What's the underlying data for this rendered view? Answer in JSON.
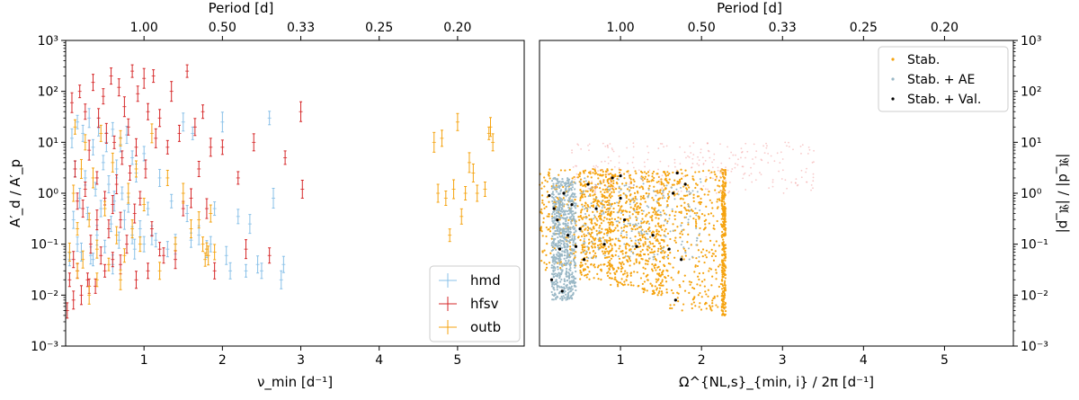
{
  "chart_data": [
    {
      "type": "scatter",
      "panel": "left",
      "xlabel": "ν_min [d⁻¹]",
      "ylabel": "A′_d / A′_p",
      "top_xlabel": "Period [d]",
      "xlim": [
        0.0,
        5.85
      ],
      "ylim": [
        0.001,
        1000
      ],
      "yscale": "log",
      "x_ticks": [
        "1",
        "2",
        "3",
        "4",
        "5"
      ],
      "x_tick_values": [
        1,
        2,
        3,
        4,
        5
      ],
      "top_ticks": [
        "1.00",
        "0.50",
        "0.33",
        "0.25",
        "0.20"
      ],
      "top_tick_values": [
        1.0,
        2.0,
        3.0,
        4.0,
        5.0
      ],
      "y_ticks": [
        "10⁻³",
        "10⁻²",
        "10⁻¹",
        "10⁰",
        "10¹",
        "10²",
        "10³"
      ],
      "y_tick_values": [
        0.001,
        0.01,
        0.1,
        1,
        10,
        100,
        1000
      ],
      "legend_position": "bottom-right",
      "series": [
        {
          "name": "hmd",
          "color": "#88c0e8",
          "points": [
            [
              0.05,
              0.05
            ],
            [
              0.08,
              12
            ],
            [
              0.1,
              0.3
            ],
            [
              0.12,
              3
            ],
            [
              0.15,
              25
            ],
            [
              0.18,
              0.8
            ],
            [
              0.2,
              0.07
            ],
            [
              0.22,
              15
            ],
            [
              0.25,
              2
            ],
            [
              0.28,
              0.4
            ],
            [
              0.3,
              30
            ],
            [
              0.32,
              0.06
            ],
            [
              0.35,
              8
            ],
            [
              0.38,
              1.2
            ],
            [
              0.4,
              0.15
            ],
            [
              0.42,
              20
            ],
            [
              0.45,
              0.5
            ],
            [
              0.48,
              4
            ],
            [
              0.5,
              0.09
            ],
            [
              0.52,
              10
            ],
            [
              0.55,
              1.5
            ],
            [
              0.58,
              0.25
            ],
            [
              0.6,
              18
            ],
            [
              0.62,
              0.7
            ],
            [
              0.65,
              3
            ],
            [
              0.68,
              0.12
            ],
            [
              0.7,
              9
            ],
            [
              0.72,
              1
            ],
            [
              0.75,
              0.3
            ],
            [
              0.78,
              14
            ],
            [
              0.8,
              0.6
            ],
            [
              0.85,
              5
            ],
            [
              0.88,
              0.08
            ],
            [
              0.9,
              2.5
            ],
            [
              0.95,
              0.2
            ],
            [
              1.0,
              6
            ],
            [
              1.05,
              0.5
            ],
            [
              1.1,
              0.15
            ],
            [
              1.2,
              2
            ],
            [
              1.3,
              0.08
            ],
            [
              1.35,
              0.7
            ],
            [
              1.4,
              0.1
            ],
            [
              1.5,
              25
            ],
            [
              1.55,
              0.4
            ],
            [
              1.6,
              0.12
            ],
            [
              1.62,
              15
            ],
            [
              1.7,
              0.15
            ],
            [
              1.8,
              0.08
            ],
            [
              1.85,
              0.1
            ],
            [
              1.9,
              0.5
            ],
            [
              2.0,
              25
            ],
            [
              2.05,
              0.06
            ],
            [
              2.1,
              0.03
            ],
            [
              2.2,
              0.35
            ],
            [
              2.3,
              0.03
            ],
            [
              2.35,
              0.25
            ],
            [
              2.45,
              0.04
            ],
            [
              2.5,
              0.03
            ],
            [
              2.6,
              30
            ],
            [
              2.65,
              0.8
            ],
            [
              2.75,
              0.02
            ],
            [
              2.78,
              0.04
            ],
            [
              0.15,
              0.1
            ],
            [
              0.35,
              0.05
            ],
            [
              0.6,
              0.04
            ],
            [
              0.85,
              0.15
            ],
            [
              1.0,
              0.1
            ],
            [
              1.15,
              0.12
            ]
          ]
        },
        {
          "name": "hfsv",
          "color": "#d62728",
          "points": [
            [
              0.02,
              0.005
            ],
            [
              0.05,
              0.02
            ],
            [
              0.08,
              60
            ],
            [
              0.1,
              0.008
            ],
            [
              0.12,
              3
            ],
            [
              0.15,
              0.03
            ],
            [
              0.18,
              100
            ],
            [
              0.2,
              0.01
            ],
            [
              0.22,
              0.5
            ],
            [
              0.25,
              40
            ],
            [
              0.28,
              0.02
            ],
            [
              0.3,
              7
            ],
            [
              0.32,
              0.1
            ],
            [
              0.35,
              150
            ],
            [
              0.38,
              0.015
            ],
            [
              0.4,
              2
            ],
            [
              0.42,
              30
            ],
            [
              0.45,
              0.06
            ],
            [
              0.48,
              80
            ],
            [
              0.5,
              0.8
            ],
            [
              0.52,
              15
            ],
            [
              0.55,
              0.2
            ],
            [
              0.58,
              200
            ],
            [
              0.6,
              0.05
            ],
            [
              0.62,
              10
            ],
            [
              0.65,
              1.5
            ],
            [
              0.68,
              120
            ],
            [
              0.7,
              0.3
            ],
            [
              0.72,
              5
            ],
            [
              0.75,
              50
            ],
            [
              0.78,
              0.1
            ],
            [
              0.8,
              20
            ],
            [
              0.82,
              2.5
            ],
            [
              0.85,
              250
            ],
            [
              0.88,
              0.4
            ],
            [
              0.9,
              8
            ],
            [
              0.92,
              90
            ],
            [
              0.95,
              0.8
            ],
            [
              1.0,
              180
            ],
            [
              1.02,
              3
            ],
            [
              1.05,
              40
            ],
            [
              1.1,
              0.2
            ],
            [
              1.12,
              200
            ],
            [
              1.15,
              12
            ],
            [
              1.2,
              30
            ],
            [
              1.25,
              0.06
            ],
            [
              1.3,
              8
            ],
            [
              1.35,
              100
            ],
            [
              1.4,
              0.05
            ],
            [
              1.45,
              15
            ],
            [
              1.5,
              0.5
            ],
            [
              1.55,
              250
            ],
            [
              1.6,
              0.8
            ],
            [
              1.65,
              20
            ],
            [
              1.7,
              3
            ],
            [
              1.75,
              40
            ],
            [
              1.8,
              0.5
            ],
            [
              1.85,
              8
            ],
            [
              1.9,
              0.03
            ],
            [
              2.0,
              8
            ],
            [
              2.2,
              2
            ],
            [
              2.3,
              0.08
            ],
            [
              2.4,
              10
            ],
            [
              2.6,
              0.06
            ],
            [
              2.8,
              5
            ],
            [
              3.0,
              40
            ],
            [
              3.02,
              1.2
            ],
            [
              0.1,
              0.05
            ],
            [
              0.3,
              0.015
            ],
            [
              0.5,
              0.03
            ],
            [
              0.7,
              0.04
            ],
            [
              0.9,
              0.02
            ],
            [
              1.05,
              0.03
            ],
            [
              1.2,
              0.08
            ],
            [
              0.4,
              0.3
            ],
            [
              0.6,
              0.6
            ],
            [
              0.15,
              0.7
            ],
            [
              0.25,
              1.2
            ]
          ]
        },
        {
          "name": "outb",
          "color": "#f5a30f",
          "points": [
            [
              0.05,
              0.07
            ],
            [
              0.1,
              1
            ],
            [
              0.12,
              20
            ],
            [
              0.15,
              0.2
            ],
            [
              0.2,
              3
            ],
            [
              0.22,
              0.05
            ],
            [
              0.25,
              10
            ],
            [
              0.3,
              0.3
            ],
            [
              0.35,
              2
            ],
            [
              0.4,
              0.08
            ],
            [
              0.45,
              15
            ],
            [
              0.5,
              0.5
            ],
            [
              0.55,
              0.04
            ],
            [
              0.6,
              4
            ],
            [
              0.65,
              0.15
            ],
            [
              0.7,
              12
            ],
            [
              0.75,
              0.06
            ],
            [
              0.8,
              1
            ],
            [
              0.85,
              0.2
            ],
            [
              0.9,
              3
            ],
            [
              0.95,
              0.1
            ],
            [
              1.0,
              0.6
            ],
            [
              1.1,
              15
            ],
            [
              1.2,
              0.03
            ],
            [
              1.3,
              2
            ],
            [
              1.4,
              0.1
            ],
            [
              1.5,
              1
            ],
            [
              1.6,
              0.2
            ],
            [
              1.7,
              0.3
            ],
            [
              1.75,
              0.1
            ],
            [
              1.8,
              0.08
            ],
            [
              1.82,
              0.06
            ],
            [
              1.85,
              0.4
            ],
            [
              1.9,
              0.07
            ],
            [
              1.78,
              0.05
            ],
            [
              4.7,
              10
            ],
            [
              4.75,
              1
            ],
            [
              4.8,
              12
            ],
            [
              4.85,
              0.8
            ],
            [
              4.9,
              0.15
            ],
            [
              4.95,
              1.2
            ],
            [
              5.0,
              25
            ],
            [
              5.05,
              0.35
            ],
            [
              5.1,
              1
            ],
            [
              5.15,
              4
            ],
            [
              5.2,
              2.5
            ],
            [
              5.25,
              1
            ],
            [
              5.35,
              1.2
            ],
            [
              5.4,
              15
            ],
            [
              5.42,
              20
            ],
            [
              5.45,
              10
            ],
            [
              0.15,
              0.03
            ],
            [
              0.4,
              0.02
            ],
            [
              0.7,
              0.02
            ],
            [
              0.3,
              0.01
            ]
          ]
        }
      ]
    },
    {
      "type": "scatter",
      "panel": "right",
      "xlabel": "Ω^{NL,s}_{min, i} / 2π [d⁻¹]",
      "ylabel": "|𝔄_d| / |𝔄_p|",
      "top_xlabel": "Period [d]",
      "xlim": [
        0.0,
        5.85
      ],
      "ylim": [
        0.001,
        1000
      ],
      "yscale": "log",
      "x_ticks": [
        "1",
        "2",
        "3",
        "4",
        "5"
      ],
      "x_tick_values": [
        1,
        2,
        3,
        4,
        5
      ],
      "top_ticks": [
        "1.00",
        "0.50",
        "0.33",
        "0.25",
        "0.20"
      ],
      "top_tick_values": [
        1.0,
        2.0,
        3.0,
        4.0,
        5.0
      ],
      "y_ticks": [
        "10⁻³",
        "10⁻²",
        "10⁻¹",
        "10⁰",
        "10¹",
        "10²",
        "10³"
      ],
      "y_tick_values": [
        0.001,
        0.01,
        0.1,
        1,
        10,
        100,
        1000
      ],
      "legend_position": "top-right",
      "series": [
        {
          "name": "Stab.",
          "color": "#f5a30f"
        },
        {
          "name": "Stab. + AE",
          "color": "#9ab8c6"
        },
        {
          "name": "Stab. + Val.",
          "color": "#000000"
        },
        {
          "name": "",
          "color": "#f4a6a6"
        }
      ],
      "validated_points": [
        [
          0.18,
          0.5
        ],
        [
          0.22,
          0.3
        ],
        [
          0.25,
          0.08
        ],
        [
          0.3,
          1.0
        ],
        [
          0.35,
          0.15
        ],
        [
          0.4,
          0.6
        ],
        [
          0.45,
          0.09
        ],
        [
          0.5,
          0.2
        ],
        [
          0.55,
          0.05
        ],
        [
          0.6,
          1.5
        ],
        [
          0.7,
          0.5
        ],
        [
          0.8,
          0.1
        ],
        [
          0.9,
          2.0
        ],
        [
          1.0,
          0.8
        ],
        [
          1.05,
          0.3
        ],
        [
          1.2,
          0.09
        ],
        [
          1.4,
          0.15
        ],
        [
          1.6,
          0.08
        ],
        [
          1.65,
          1.0
        ],
        [
          1.7,
          2.5
        ],
        [
          1.75,
          0.05
        ],
        [
          1.8,
          1.5
        ],
        [
          0.15,
          0.02
        ],
        [
          0.28,
          0.012
        ],
        [
          1.68,
          0.008
        ],
        [
          0.12,
          0.9
        ],
        [
          1.0,
          2.2
        ]
      ]
    }
  ]
}
